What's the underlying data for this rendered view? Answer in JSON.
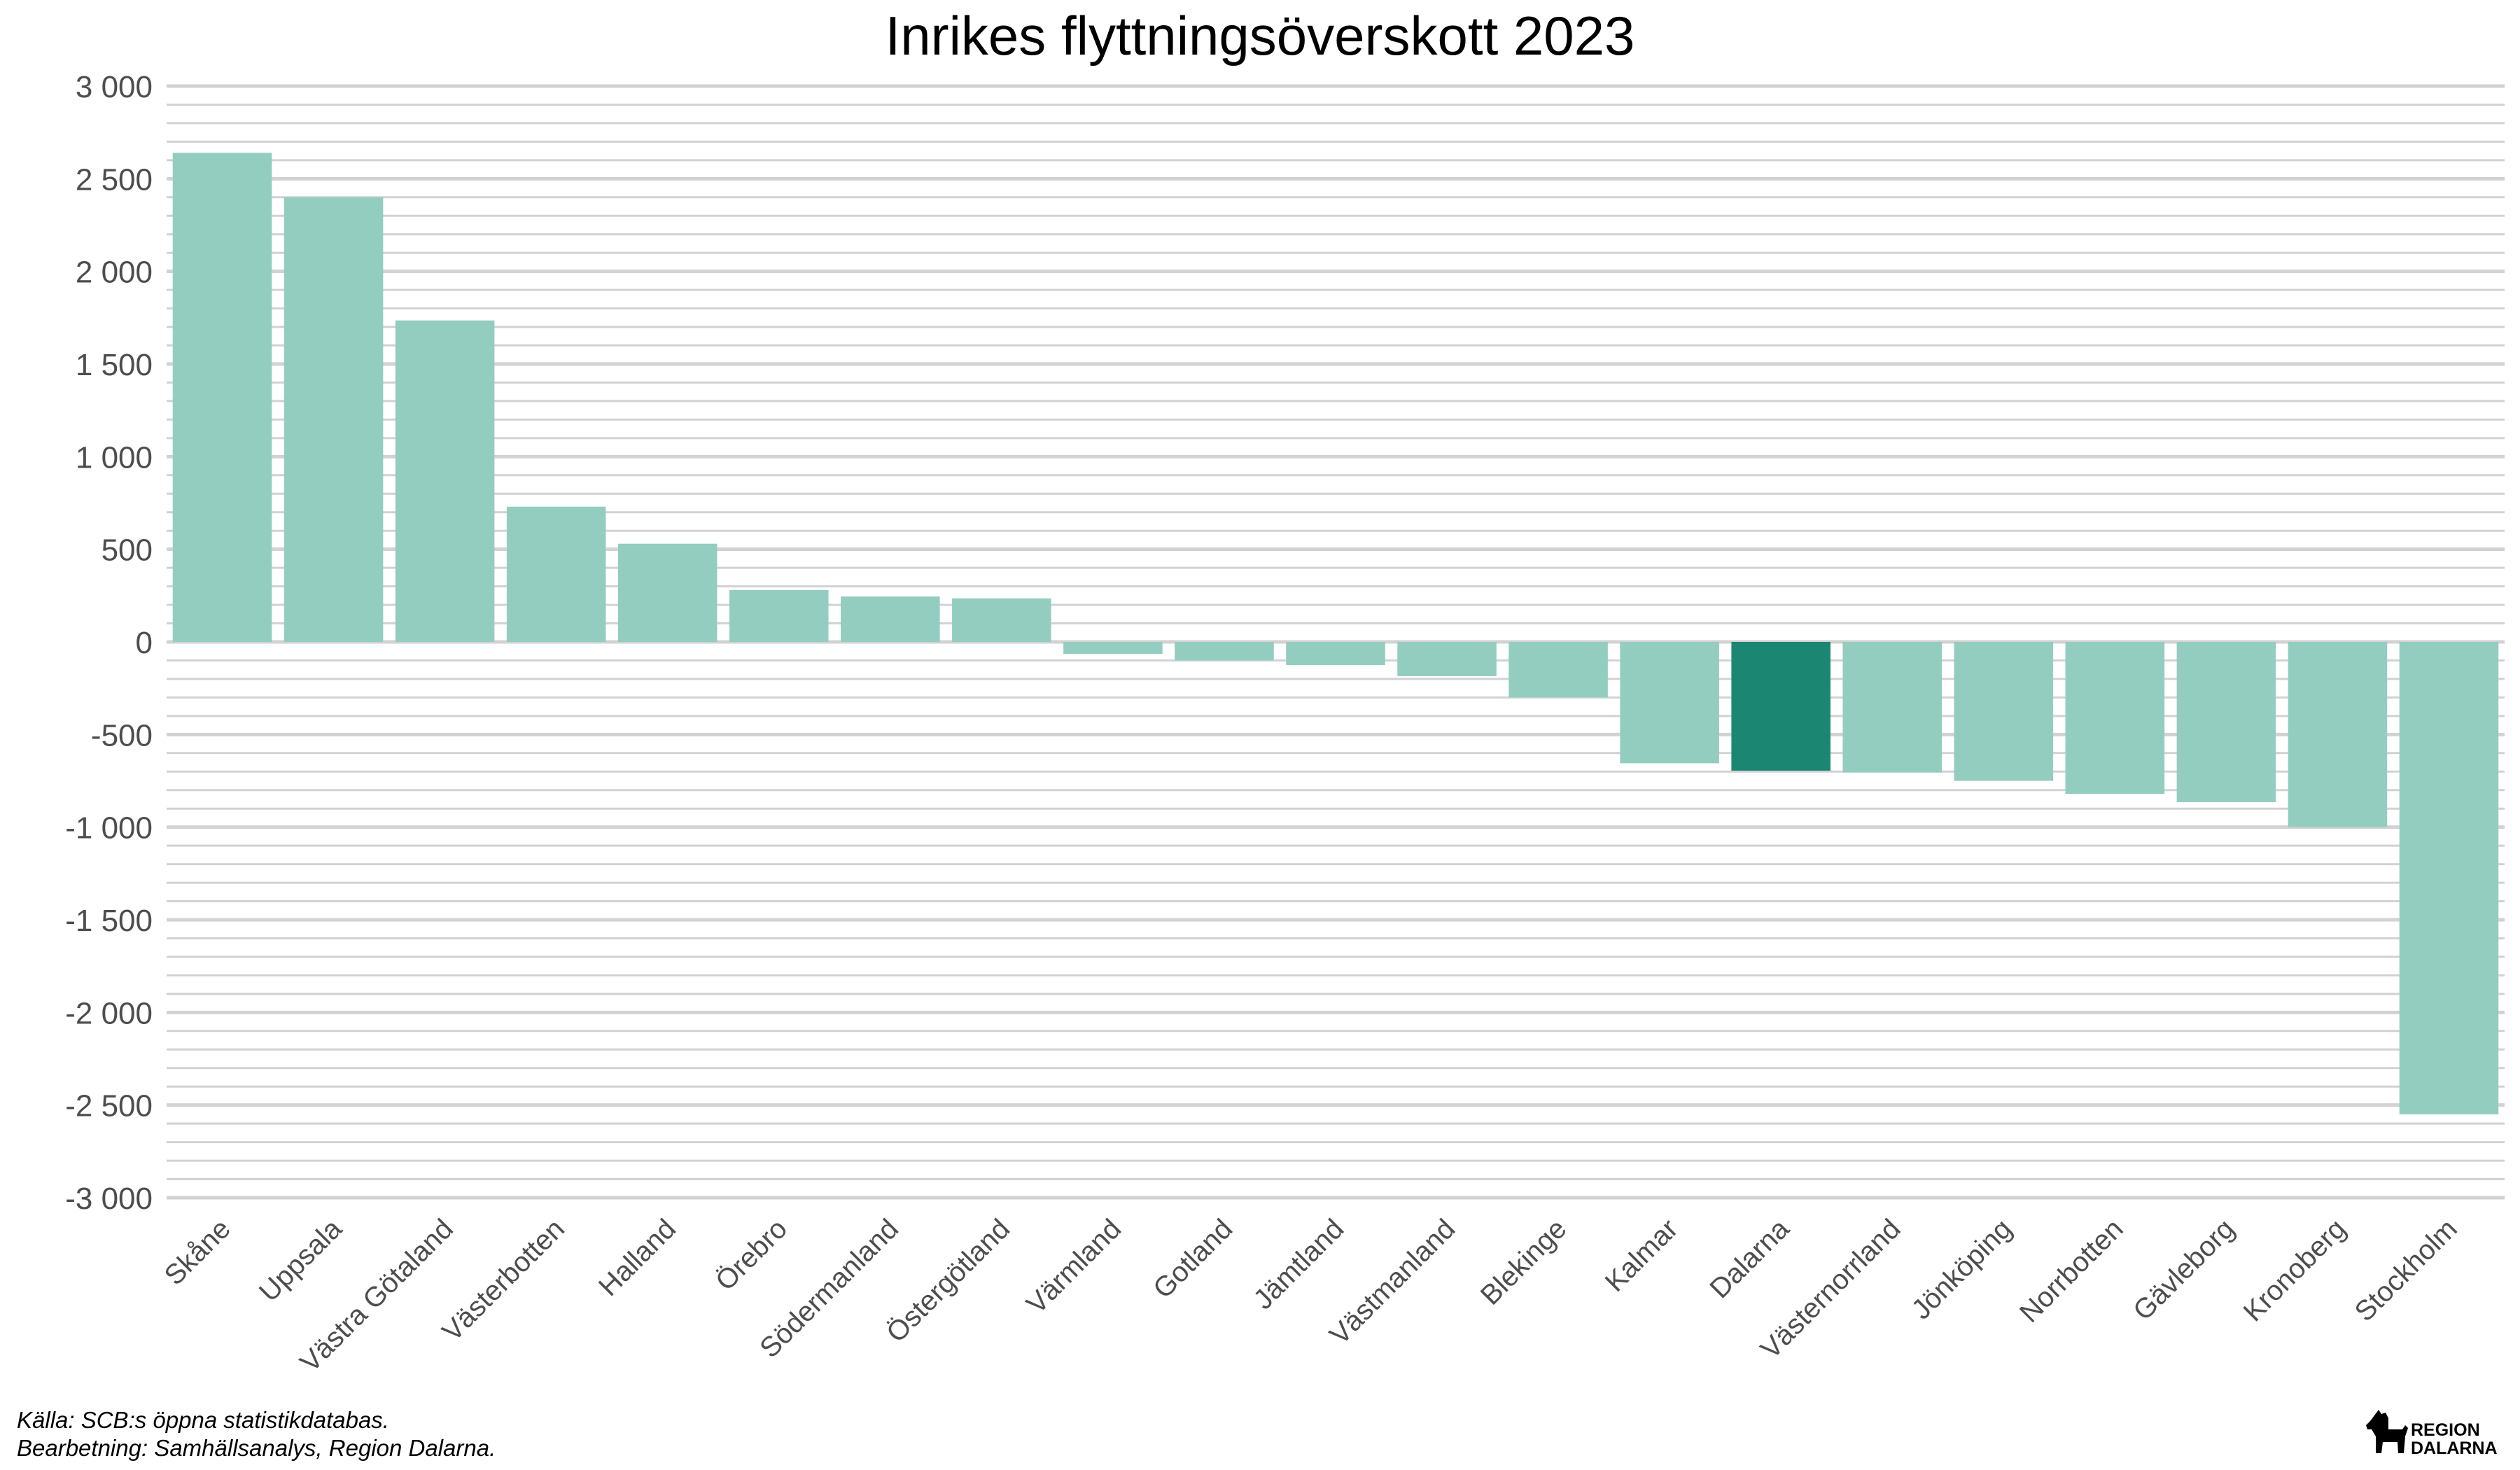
{
  "chart_data": {
    "type": "bar",
    "title": "Inrikes flyttningsöverskott 2023",
    "xlabel": "",
    "ylabel": "",
    "ylim": [
      -3000,
      3000
    ],
    "yticks": [
      3000,
      2500,
      2000,
      1500,
      1000,
      500,
      0,
      -500,
      -1000,
      -1500,
      -2000,
      -2500,
      -3000
    ],
    "ytick_labels": [
      "3 000",
      "2 500",
      "2 000",
      "1 500",
      "1 000",
      "500",
      "0",
      "-500",
      "-1 000",
      "-1 500",
      "-2 000",
      "-2 500",
      "-3 000"
    ],
    "categories": [
      "Skåne",
      "Uppsala",
      "Västra Götaland",
      "Västerbotten",
      "Halland",
      "Örebro",
      "Södermanland",
      "Östergötland",
      "Värmland",
      "Gotland",
      "Jämtland",
      "Västmanland",
      "Blekinge",
      "Kalmar",
      "Dalarna",
      "Västernorrland",
      "Jönköping",
      "Norrbotten",
      "Gävleborg",
      "Kronoberg",
      "Stockholm"
    ],
    "values": [
      2640,
      2400,
      1735,
      730,
      530,
      280,
      245,
      235,
      -65,
      -100,
      -125,
      -185,
      -300,
      -655,
      -695,
      -705,
      -750,
      -820,
      -865,
      -1000,
      -2550
    ],
    "highlight": "Dalarna",
    "colors": {
      "default": "#93cdc0",
      "highlight": "#1b8671",
      "grid": "#d2d2d2"
    },
    "grid": true,
    "legend": "none"
  },
  "footer": {
    "source": "Källa: SCB:s öppna statistikdatabas.",
    "processing": "Bearbetning: Samhällsanalys, Region Dalarna."
  },
  "logo": {
    "line1": "REGION",
    "line2": "DALARNA",
    "icon": "dala-horse-icon"
  }
}
